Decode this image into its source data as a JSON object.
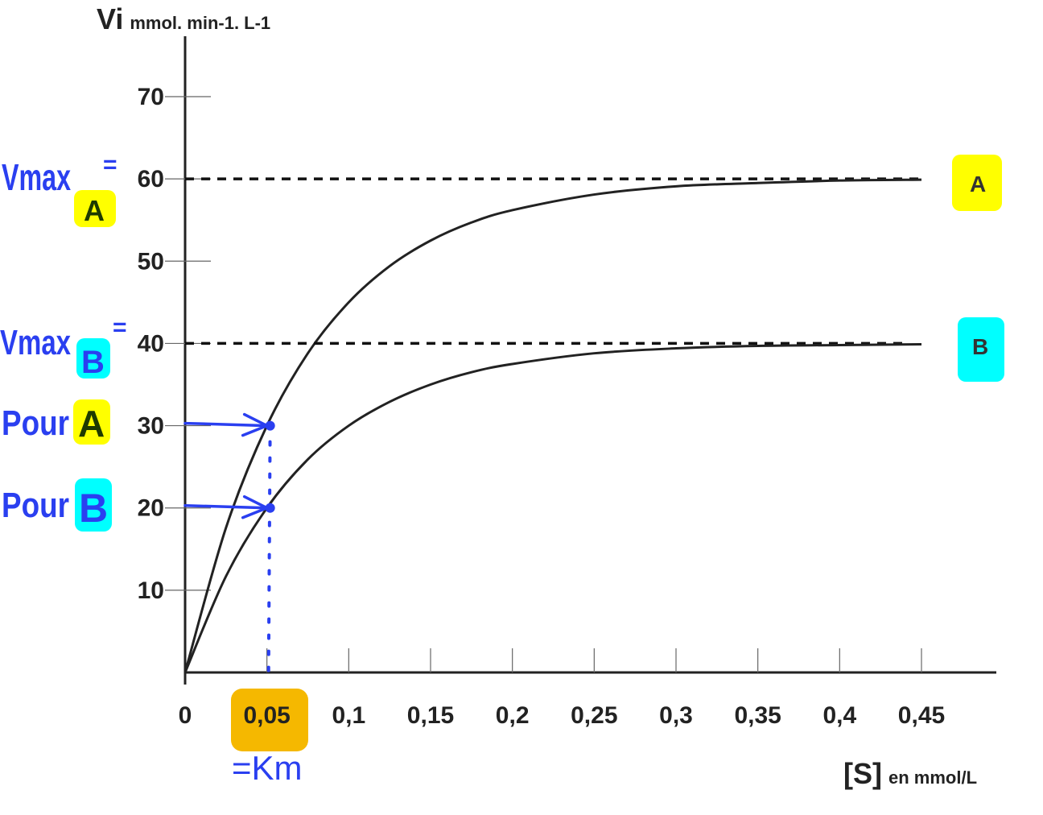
{
  "chart_data": {
    "type": "line",
    "ylabel_main": "Vi",
    "ylabel_unit": "mmol. min-1. L-1",
    "xlabel_main": "[S]",
    "xlabel_unit": "en mmol/L",
    "xlim": [
      0,
      0.45
    ],
    "ylim": [
      0,
      70
    ],
    "x_ticks": [
      "0",
      "0,05",
      "0,1",
      "0,15",
      "0,2",
      "0,25",
      "0,3",
      "0,35",
      "0,4",
      "0,45"
    ],
    "x_tick_values": [
      0,
      0.05,
      0.1,
      0.15,
      0.2,
      0.25,
      0.3,
      0.35,
      0.4,
      0.45
    ],
    "y_ticks": [
      "10",
      "20",
      "30",
      "40",
      "50",
      "60",
      "70"
    ],
    "y_tick_values": [
      10,
      20,
      30,
      40,
      50,
      60,
      70
    ],
    "grid": false,
    "x": [
      0,
      0.025,
      0.05,
      0.075,
      0.1,
      0.125,
      0.15,
      0.175,
      0.2,
      0.25,
      0.3,
      0.35,
      0.4,
      0.45
    ],
    "series": [
      {
        "name": "A",
        "label_color": "#ffff00",
        "values": [
          0,
          17.6,
          30,
          38.8,
          45,
          49.4,
          52.5,
          54.7,
          56.2,
          58.1,
          59.1,
          59.5,
          59.8,
          59.9
        ],
        "vmax": 60
      },
      {
        "name": "B",
        "label_color": "#00ffff",
        "values": [
          0,
          11.7,
          20,
          25.9,
          30,
          32.9,
          35,
          36.5,
          37.5,
          38.8,
          39.4,
          39.7,
          39.8,
          39.9
        ],
        "vmax": 40
      }
    ],
    "annotations": {
      "vmax_a": "Vmax",
      "vmax_a_suffix": "A",
      "vmax_a_eq": "=",
      "vmax_b": "Vmax",
      "vmax_b_suffix": "B",
      "vmax_b_eq": "=",
      "pour_a": "Pour",
      "pour_a_letter": "A",
      "pour_b": "Pour",
      "pour_b_letter": "B",
      "km": "=Km",
      "km_x": 0.05,
      "highlight_km_color": "#f5b800",
      "ink_color": "#2a3ff0"
    }
  }
}
